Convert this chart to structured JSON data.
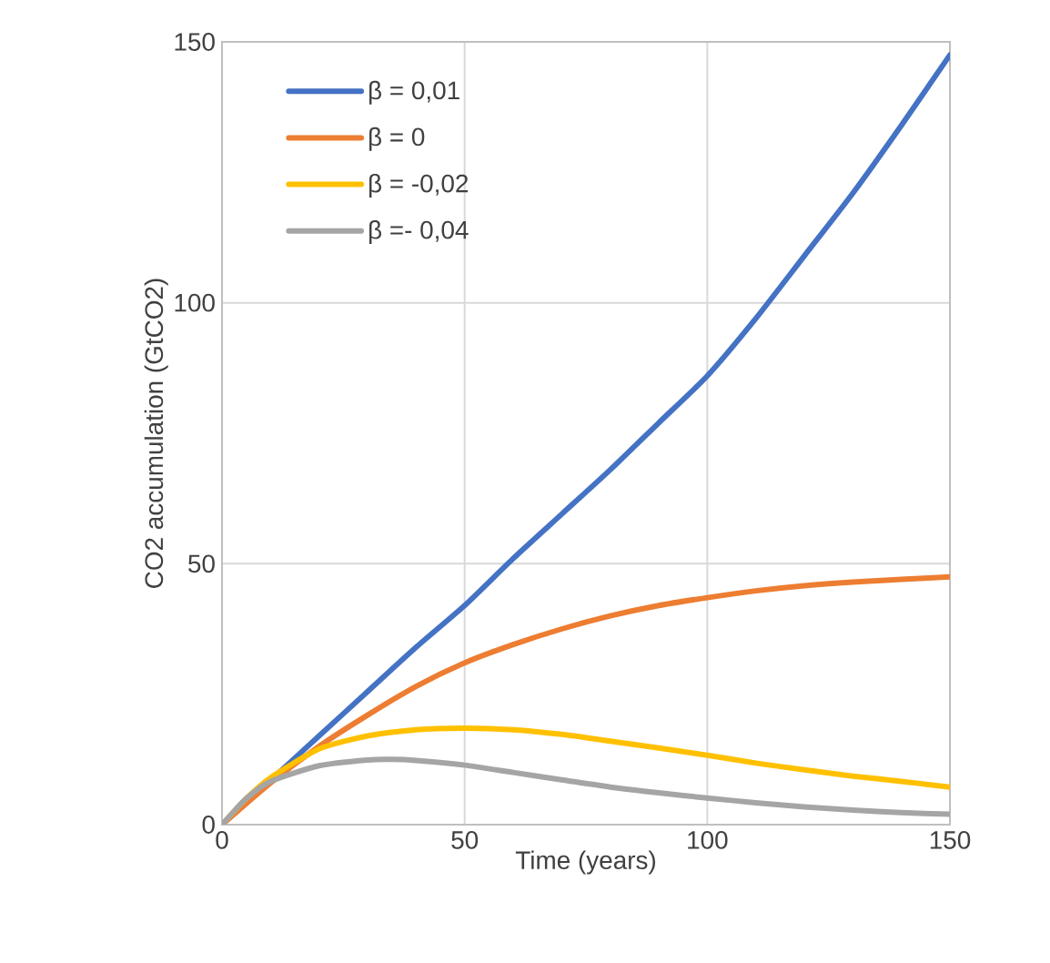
{
  "chart_data": {
    "type": "line",
    "xlabel": "Time (years)",
    "ylabel": "CO2 accumulation (GtCO2)",
    "xlim": [
      0,
      150
    ],
    "ylim": [
      0,
      150
    ],
    "xticks": [
      0,
      50,
      100,
      150
    ],
    "yticks": [
      0,
      50,
      100,
      150
    ],
    "grid": true,
    "legend": "top left",
    "marker": "none",
    "line_style": "solid",
    "series": [
      {
        "name": "β = 0,01",
        "color": "#4472c4",
        "x": [
          0,
          10,
          20,
          30,
          40,
          50,
          60,
          70,
          80,
          90,
          100,
          110,
          120,
          130,
          140,
          150
        ],
        "values": [
          0,
          8.5,
          17,
          25.5,
          34,
          42,
          51,
          59.5,
          68,
          77,
          86,
          97,
          109,
          121,
          134,
          147.5
        ]
      },
      {
        "name": "β = 0",
        "color": "#ed7d31",
        "x": [
          0,
          10,
          20,
          30,
          40,
          50,
          60,
          70,
          80,
          90,
          100,
          110,
          120,
          130,
          140,
          150
        ],
        "values": [
          0,
          8,
          15,
          21,
          26.5,
          31,
          34.5,
          37.5,
          40,
          42,
          43.5,
          44.8,
          45.8,
          46.5,
          47,
          47.5
        ]
      },
      {
        "name": "β = -0,02",
        "color": "#ffc000",
        "x": [
          0,
          5,
          10,
          20,
          30,
          40,
          50,
          60,
          70,
          80,
          90,
          100,
          110,
          120,
          130,
          140,
          150
        ],
        "values": [
          0,
          5,
          9,
          14.5,
          17,
          18.2,
          18.5,
          18.2,
          17.3,
          16,
          14.7,
          13.3,
          11.8,
          10.5,
          9.3,
          8.3,
          7.2
        ]
      },
      {
        "name": "β =- 0,04",
        "color": "#a5a5a5",
        "x": [
          0,
          5,
          10,
          20,
          30,
          35,
          40,
          50,
          60,
          70,
          80,
          90,
          100,
          110,
          120,
          130,
          140,
          150
        ],
        "values": [
          0,
          5,
          8.3,
          11.3,
          12.4,
          12.5,
          12.3,
          11.4,
          10,
          8.6,
          7.2,
          6.1,
          5.1,
          4.2,
          3.4,
          2.8,
          2.3,
          2
        ]
      }
    ]
  }
}
